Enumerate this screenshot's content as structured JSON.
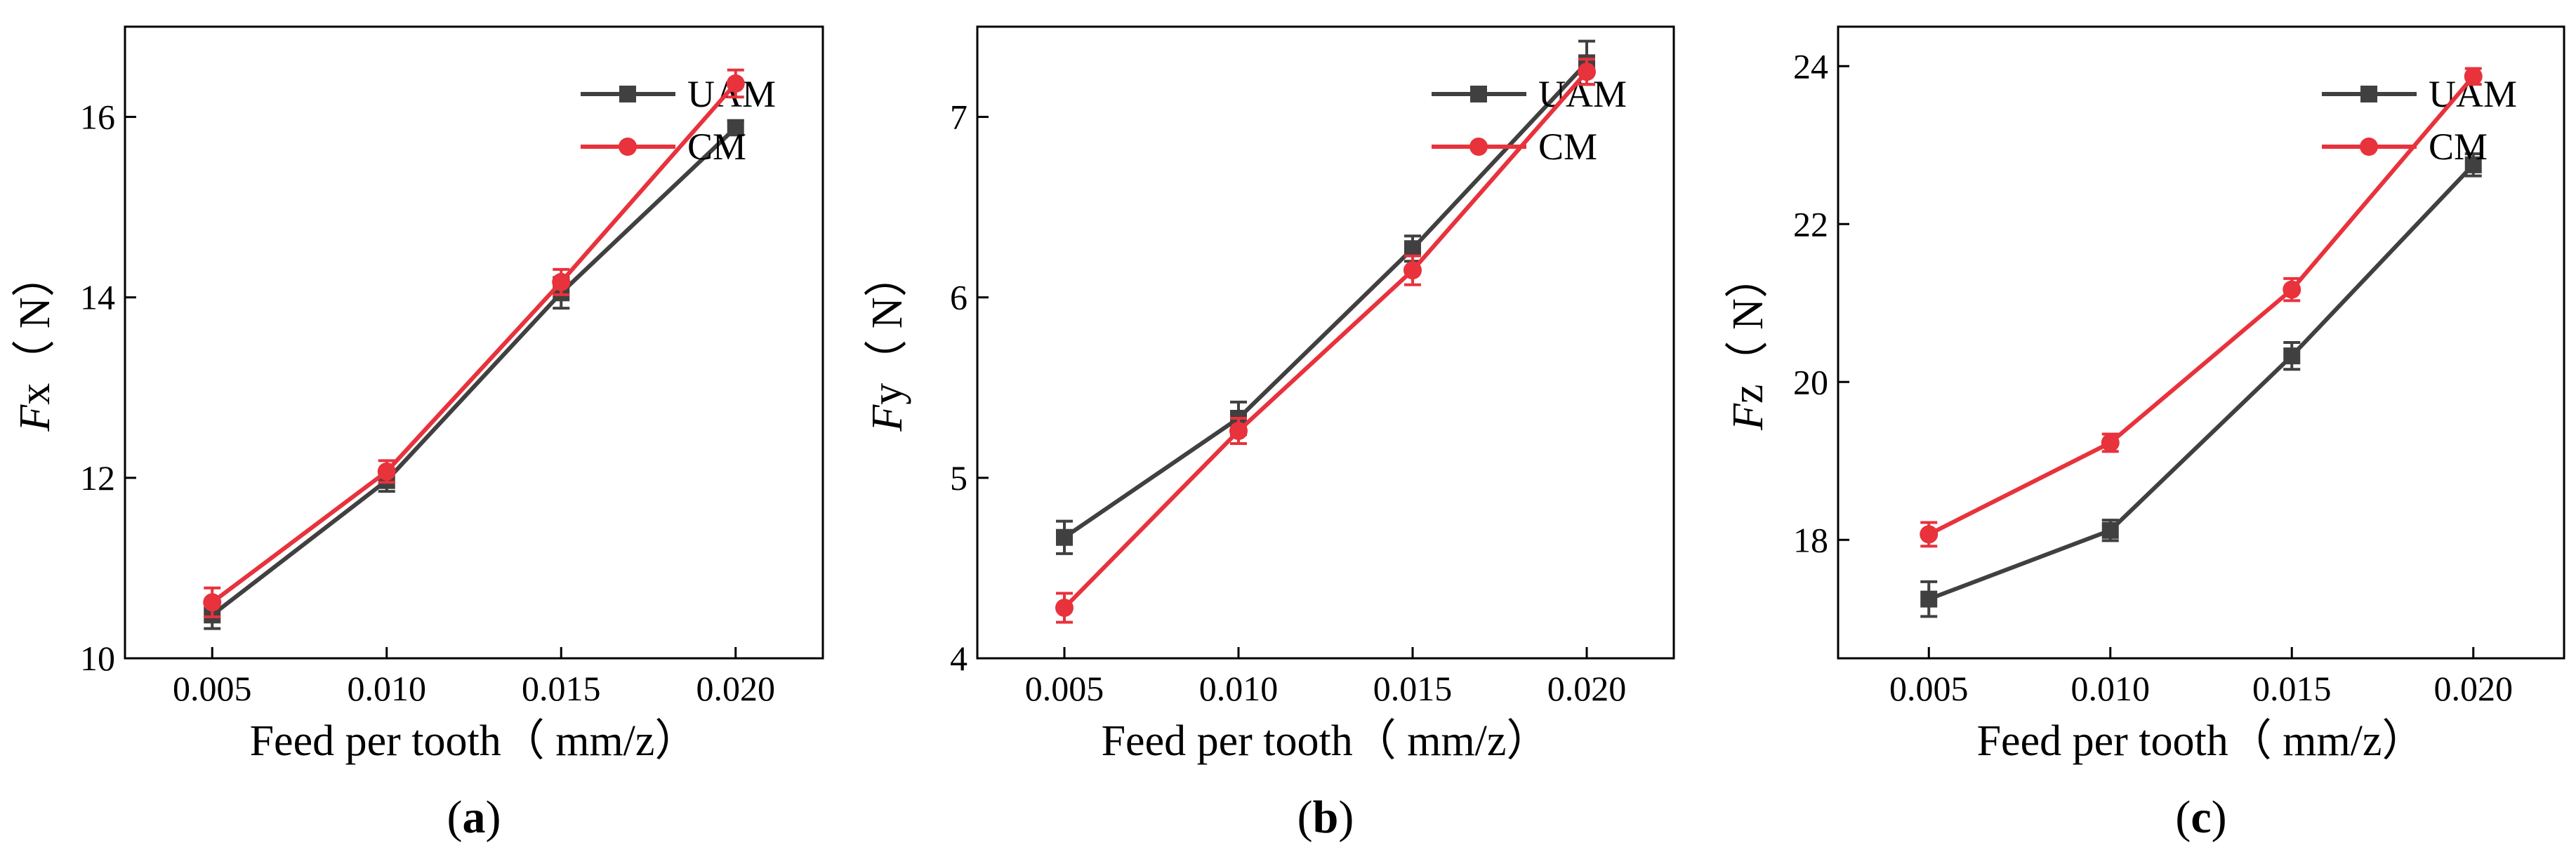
{
  "figure": {
    "colors": {
      "UAM": "#404040",
      "CM": "#e8323c",
      "axis": "#000000"
    }
  },
  "chart_data": [
    {
      "type": "line",
      "panel_label": "(a)",
      "panel_letter": "a",
      "ylabel_var": "F",
      "ylabel_sub": "x",
      "ylabel_unit": "（ N）",
      "xlabel": "Feed per tooth（  mm/z）",
      "x": [
        0.005,
        0.01,
        0.015,
        0.02
      ],
      "x_tick_labels": [
        "0.005",
        "0.010",
        "0.015",
        "0.020"
      ],
      "xlim": [
        0.0025,
        0.0225
      ],
      "ylim": [
        10,
        17
      ],
      "yticks": [
        10,
        12,
        14,
        16
      ],
      "legend_position": "top-right",
      "series": [
        {
          "name": "UAM",
          "marker": "square",
          "values": [
            10.48,
            11.97,
            14.05,
            15.88
          ],
          "errors": [
            0.15,
            0.12,
            0.17,
            0.08
          ]
        },
        {
          "name": "CM",
          "marker": "circle",
          "values": [
            10.62,
            12.07,
            14.17,
            16.37
          ],
          "errors": [
            0.16,
            0.12,
            0.14,
            0.15
          ]
        }
      ]
    },
    {
      "type": "line",
      "panel_label": "(b)",
      "panel_letter": "b",
      "ylabel_var": "F",
      "ylabel_sub": "y",
      "ylabel_unit": "（ N）",
      "xlabel": "Feed per tooth（  mm/z）",
      "x": [
        0.005,
        0.01,
        0.015,
        0.02
      ],
      "x_tick_labels": [
        "0.005",
        "0.010",
        "0.015",
        "0.020"
      ],
      "xlim": [
        0.0025,
        0.0225
      ],
      "ylim": [
        4,
        7.5
      ],
      "yticks": [
        4,
        5,
        6,
        7
      ],
      "legend_position": "top-right",
      "series": [
        {
          "name": "UAM",
          "marker": "square",
          "values": [
            4.67,
            5.33,
            6.27,
            7.3
          ],
          "errors": [
            0.09,
            0.09,
            0.07,
            0.12
          ]
        },
        {
          "name": "CM",
          "marker": "circle",
          "values": [
            4.28,
            5.26,
            6.15,
            7.25
          ],
          "errors": [
            0.08,
            0.07,
            0.08,
            0.07
          ]
        }
      ]
    },
    {
      "type": "line",
      "panel_label": "(c)",
      "panel_letter": "c",
      "ylabel_var": "F",
      "ylabel_sub": "z",
      "ylabel_unit": "（ N）",
      "xlabel": "Feed per tooth（  mm/z）",
      "x": [
        0.005,
        0.01,
        0.015,
        0.02
      ],
      "x_tick_labels": [
        "0.005",
        "0.010",
        "0.015",
        "0.020"
      ],
      "xlim": [
        0.0025,
        0.0225
      ],
      "ylim": [
        16.5,
        24.5
      ],
      "yticks": [
        18,
        20,
        22,
        24
      ],
      "legend_position": "top-right",
      "series": [
        {
          "name": "UAM",
          "marker": "square",
          "values": [
            17.25,
            18.12,
            20.33,
            22.75
          ],
          "errors": [
            0.22,
            0.13,
            0.17,
            0.14
          ]
        },
        {
          "name": "CM",
          "marker": "circle",
          "values": [
            18.07,
            19.23,
            21.17,
            23.87
          ],
          "errors": [
            0.15,
            0.11,
            0.14,
            0.1
          ]
        }
      ]
    }
  ]
}
